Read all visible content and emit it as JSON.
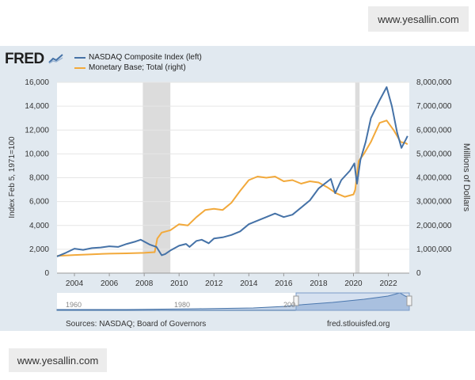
{
  "watermarks": {
    "top": "www.yesallin.com",
    "bottom": "www.yesallin.com"
  },
  "logo": "FRED",
  "footer": {
    "sources": "Sources: NASDAQ; Board of Governors",
    "site": "fred.stlouisfed.org"
  },
  "colors": {
    "nasdaq": "#4572a7",
    "base": "#f2a93b",
    "panel": "#e1e9f0",
    "recession": "#dcdcdc"
  },
  "chart_data": {
    "type": "line",
    "title": "",
    "xlabel": "",
    "ylabel": "Index Feb 5, 1971=100",
    "ylabel_right": "Millions of Dollars",
    "xlim": [
      2003.0,
      2023.2
    ],
    "ylim": [
      0,
      16000
    ],
    "ylim_right": [
      0,
      8000000
    ],
    "x_ticks": [
      2004,
      2006,
      2008,
      2010,
      2012,
      2014,
      2016,
      2018,
      2020,
      2022
    ],
    "x_tick_labels": [
      "2004",
      "2006",
      "2008",
      "2010",
      "2012",
      "2014",
      "2016",
      "2018",
      "2020",
      "2022"
    ],
    "y_ticks": [
      0,
      2000,
      4000,
      6000,
      8000,
      10000,
      12000,
      14000,
      16000
    ],
    "y_tick_labels": [
      "0",
      "2,000",
      "4,000",
      "6,000",
      "8,000",
      "10,000",
      "12,000",
      "14,000",
      "16,000"
    ],
    "y_right_ticks": [
      0,
      1000000,
      2000000,
      3000000,
      4000000,
      5000000,
      6000000,
      7000000,
      8000000
    ],
    "y_right_tick_labels": [
      "0",
      "1,000,000",
      "2,000,000",
      "3,000,000",
      "4,000,000",
      "5,000,000",
      "6,000,000",
      "7,000,000",
      "8,000,000"
    ],
    "recessions": [
      [
        2007.92,
        2009.5
      ],
      [
        2020.1,
        2020.35
      ]
    ],
    "navigator": {
      "labels": [
        "1960",
        "1980",
        "200"
      ]
    },
    "series": [
      {
        "name": "NASDAQ Composite Index (left)",
        "axis": "left",
        "x": [
          2003.0,
          2003.5,
          2004.0,
          2004.5,
          2005.0,
          2005.5,
          2006.0,
          2006.5,
          2007.0,
          2007.5,
          2007.8,
          2008.3,
          2008.7,
          2009.0,
          2009.2,
          2009.5,
          2010.0,
          2010.4,
          2010.6,
          2011.0,
          2011.3,
          2011.7,
          2012.0,
          2012.5,
          2013.0,
          2013.5,
          2014.0,
          2014.5,
          2015.0,
          2015.5,
          2016.0,
          2016.5,
          2017.0,
          2017.5,
          2018.0,
          2018.7,
          2018.95,
          2019.3,
          2019.8,
          2020.05,
          2020.2,
          2020.4,
          2020.7,
          2021.0,
          2021.5,
          2021.9,
          2022.2,
          2022.5,
          2022.75,
          2023.0,
          2023.1
        ],
        "values": [
          1400,
          1700,
          2050,
          1950,
          2100,
          2150,
          2250,
          2200,
          2450,
          2650,
          2800,
          2400,
          2200,
          1500,
          1600,
          1900,
          2300,
          2450,
          2200,
          2700,
          2800,
          2500,
          2900,
          3000,
          3200,
          3500,
          4100,
          4400,
          4700,
          5000,
          4700,
          4900,
          5500,
          6100,
          7100,
          7900,
          6700,
          7800,
          8600,
          9200,
          7500,
          9500,
          11000,
          13000,
          14500,
          15600,
          14000,
          11800,
          10500,
          11200,
          11500
        ]
      },
      {
        "name": "Monetary Base; Total (right)",
        "axis": "right",
        "x": [
          2003.0,
          2004.0,
          2005.0,
          2006.0,
          2007.0,
          2008.0,
          2008.6,
          2008.75,
          2009.0,
          2009.5,
          2010.0,
          2010.5,
          2011.0,
          2011.5,
          2012.0,
          2012.5,
          2013.0,
          2013.5,
          2014.0,
          2014.5,
          2015.0,
          2015.5,
          2016.0,
          2016.5,
          2017.0,
          2017.5,
          2018.0,
          2018.5,
          2019.0,
          2019.5,
          2020.0,
          2020.1,
          2020.3,
          2020.6,
          2021.0,
          2021.5,
          2021.9,
          2022.3,
          2022.7,
          2023.0,
          2023.1
        ],
        "values": [
          720000,
          760000,
          790000,
          815000,
          830000,
          850000,
          880000,
          1450000,
          1700000,
          1800000,
          2050000,
          2000000,
          2350000,
          2650000,
          2700000,
          2650000,
          2950000,
          3450000,
          3900000,
          4050000,
          4000000,
          4050000,
          3850000,
          3900000,
          3750000,
          3850000,
          3800000,
          3600000,
          3350000,
          3200000,
          3300000,
          3500000,
          4700000,
          5000000,
          5500000,
          6300000,
          6400000,
          6000000,
          5500000,
          5450000,
          5400000
        ]
      }
    ]
  }
}
